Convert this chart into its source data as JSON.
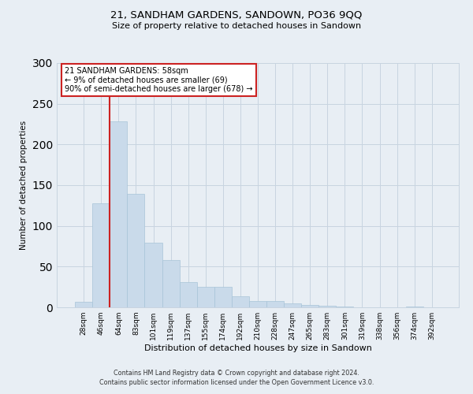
{
  "title": "21, SANDHAM GARDENS, SANDOWN, PO36 9QQ",
  "subtitle": "Size of property relative to detached houses in Sandown",
  "xlabel": "Distribution of detached houses by size in Sandown",
  "ylabel": "Number of detached properties",
  "bar_labels": [
    "28sqm",
    "46sqm",
    "64sqm",
    "83sqm",
    "101sqm",
    "119sqm",
    "137sqm",
    "155sqm",
    "174sqm",
    "192sqm",
    "210sqm",
    "228sqm",
    "247sqm",
    "265sqm",
    "283sqm",
    "301sqm",
    "319sqm",
    "338sqm",
    "356sqm",
    "374sqm",
    "392sqm"
  ],
  "bar_values": [
    7,
    128,
    228,
    139,
    79,
    58,
    31,
    25,
    25,
    14,
    8,
    8,
    5,
    3,
    2,
    1,
    0,
    0,
    0,
    1,
    0
  ],
  "bar_color": "#c9daea",
  "bar_edge_color": "#a8c4d8",
  "vline_x_index": 1.5,
  "vline_color": "#cc2222",
  "annotation_title": "21 SANDHAM GARDENS: 58sqm",
  "annotation_line1": "← 9% of detached houses are smaller (69)",
  "annotation_line2": "90% of semi-detached houses are larger (678) →",
  "annotation_box_facecolor": "#ffffff",
  "annotation_box_edgecolor": "#cc2222",
  "ylim": [
    0,
    300
  ],
  "yticks": [
    0,
    50,
    100,
    150,
    200,
    250,
    300
  ],
  "footnote1": "Contains HM Land Registry data © Crown copyright and database right 2024.",
  "footnote2": "Contains public sector information licensed under the Open Government Licence v3.0.",
  "background_color": "#e8eef4",
  "grid_color": "#c8d4e0"
}
